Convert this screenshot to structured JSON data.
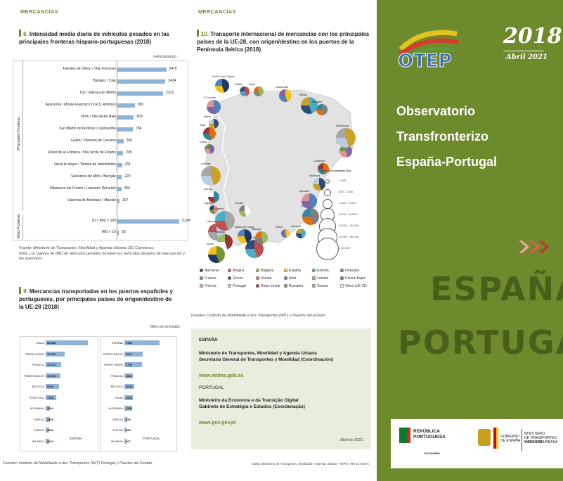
{
  "left": {
    "section_tag": "MERCANCÍAS",
    "fig8": {
      "number": "8.",
      "title": "Intensidad media diaria de vehículos pesados en las principales fronteras hispano-portuguesas (2018)",
      "unit": "(vehículos/día)",
      "group_main": "Principales Fronteras",
      "group_other": "Otras Fronteras",
      "source": "Fuente: Ministerio de Transportes, Movilidad y Agenda Urbana. DG Carreteras.",
      "note": "Nota: Los valores de IMD de vehículos pesados incluyen los vehículos pesados de mercancías y los autocares."
    },
    "fig9": {
      "number": "9.",
      "title": "Mercancías transportadas en los puertos españoles y portugueses, por principales países de origen/destino de la UE-28 (2018)",
      "unit": "Miles de toneladas",
      "label_es": "ESPAÑA",
      "label_pt": "PORTUGAL",
      "source": "Fuentes: Instituto da Mobilidade e dos Transportes (IMT) Portugal y Puertos del Estado."
    }
  },
  "chart_data": [
    {
      "type": "bar",
      "title": "Intensidad media diaria de vehículos pesados en las principales fronteras hispano-portuguesas (2018)",
      "ylabel": "(vehículos/día)",
      "categories": [
        "Fuentes de Oñoro / Vilar Formoso",
        "Badajoz / Caia",
        "Tuy / Valença do Minho",
        "Ayamonte / Monte Francisco (V.R.S. António)",
        "Verín / Vila Verde Raia",
        "San Martín de Pedroso / Quintanilha",
        "Goián / Vilanova de Cerveira",
        "Rosal de la Frontera / Vila Verde de Ficalho",
        "Zarza la Mayor / Termas de Monfortinho",
        "Salvaterra de Miño / Monção",
        "Villanueva del Fresno / Lamoeiro (Mourão)",
        "Valencia de Alcántara / Marvão",
        "10 < IMD < 100",
        "IMD < 10"
      ],
      "values": [
        2470,
        2424,
        2312,
        891,
        833,
        784,
        309,
        295,
        231,
        220,
        200,
        107,
        3124,
        82
      ]
    },
    {
      "type": "bar",
      "title": "Mercancías transportadas en los puertos españoles - ESPAÑA",
      "ylabel": "Miles de toneladas",
      "categories": [
        "ITALIA",
        "REINO UNIDO",
        "FRANCIA",
        "PAÍSES BAJOS",
        "BÉLGICA",
        "PORTUGAL",
        "ALEMANIA",
        "GRECIA",
        "SUECIA",
        "IRLANDA"
      ],
      "values": [
        28886,
        13053,
        10472,
        10008,
        9033,
        7136,
        3044,
        2880,
        2432,
        2234
      ]
    },
    {
      "type": "bar",
      "title": "Mercancías transportadas en los puertos portugueses - PORTUGAL",
      "ylabel": "Miles de toneladas",
      "categories": [
        "ESPAÑA",
        "PAÍSES BAJOS",
        "REINO UNIDO",
        "FRANCIA",
        "BÉLGICA",
        "ITALIA",
        "ALEMANIA",
        "GRECIA",
        "SUECIA",
        "IRLANDA"
      ],
      "values": [
        7456,
        3916,
        3748,
        1816,
        2048,
        1805,
        1589,
        658,
        485,
        467
      ]
    }
  ],
  "middle": {
    "section_tag": "MERCANCÍAS",
    "fig10": {
      "number": "10.",
      "title": "Transporte internacional de mercancías con los principales países de la UE-28, con origen/destino en los puertos de la Península Ibérica (2018)",
      "size_legend_title": "Miles de toneladas (tn)",
      "size_legend": [
        "< 500",
        "500 - 1.000",
        "1.000 - 5.000",
        "5.000 - 10.000",
        "10.000 - 20.000",
        "20.000 - 50.000",
        "> 50.000"
      ],
      "cities": [
        "Ferrol-San Cibrao",
        "Avilés",
        "Gijón",
        "Santander",
        "Bilbao",
        "Pasajes",
        "A Coruña",
        "Marín",
        "Vigo",
        "Viana",
        "Leixões",
        "Aveiro",
        "Figueira",
        "Lisboa",
        "Setúbal",
        "Sines",
        "Huelva",
        "Sevilla",
        "Bahía de Cádiz",
        "Bahía de Algeciras",
        "Málaga",
        "Motril",
        "Almería",
        "Cartagena",
        "Alicante",
        "Valencia",
        "Castellón",
        "Tarragona",
        "Barcelona"
      ],
      "legend": [
        {
          "name": "Alemania",
          "color": "#1f3864"
        },
        {
          "name": "Bélgica",
          "color": "#c0504d"
        },
        {
          "name": "Bulgaria",
          "color": "#9bbb59"
        },
        {
          "name": "España",
          "color": "#f2c418"
        },
        {
          "name": "Estonia",
          "color": "#4bacc6"
        },
        {
          "name": "Finlandia",
          "color": "#7f7f7f"
        },
        {
          "name": "Francia",
          "color": "#4f81bd"
        },
        {
          "name": "Grecia",
          "color": "#2c4d75"
        },
        {
          "name": "Irlanda",
          "color": "#e46c0a"
        },
        {
          "name": "Italia",
          "color": "#8064a2"
        },
        {
          "name": "Letonia",
          "color": "#c9a227"
        },
        {
          "name": "Países Bajos",
          "color": "#31859c"
        },
        {
          "name": "Polonia",
          "color": "#d99694"
        },
        {
          "name": "Portugal",
          "color": "#b9cde5"
        },
        {
          "name": "Reino Unido",
          "color": "#953735"
        },
        {
          "name": "Rumanía",
          "color": "#77933c"
        },
        {
          "name": "Suecia",
          "color": "#a6a6a6"
        },
        {
          "name": "Otros (UE 28)",
          "color": "#ffffff"
        }
      ],
      "source": "Fuentes: Instituto da Mobilidade e dos Transportes (IMT) y Puertos del Estado."
    },
    "contact": {
      "es_country": "ESPAÑA",
      "es_ministry": "Ministerio de Transportes, Movilidad y Agenda Urbana",
      "es_secretaria": "Secretaría General de Transportes y Movilidad (Coordinación)",
      "es_url": "www.mitma.gob.es",
      "pt_country": "PORTUGAL",
      "pt_ministry": "Ministério da Economia e da Transição Digital",
      "pt_gabinete": "Gabinete de Estratégia e Estudos (Coordenação)",
      "pt_url": "www.gee.gov.pt",
      "date": "Abril de 2021"
    },
    "edita": "Edita: Ministerio de Transportes, Movilidad y Agenda Urbana - NIPO: 796-21-028-X"
  },
  "right": {
    "logo_text": "OTEP",
    "year": "2018",
    "month": "Abril 2021",
    "title_line1": "Observatorio",
    "title_line2": "Transfronterizo",
    "title_line3": "España-Portugal",
    "big1": "ESPAÑA",
    "big2": "PORTUGAL",
    "pt_logo_line1": "REPÚBLICA",
    "pt_logo_line2": "PORTUGUESA",
    "pt_logo_line3": "ECONOMIA",
    "es_logo_gob1": "GOBIERNO",
    "es_logo_gob2": "DE ESPAÑA",
    "es_logo_min1": "MINISTERIO",
    "es_logo_min2": "DE TRANSPORTES, MOVILIDAD",
    "es_logo_min3": "Y AGENDA URBANA",
    "colors": {
      "panel": "#6d8a2c",
      "accent": "#6f8a2b",
      "arrow": "#c0392b"
    }
  }
}
